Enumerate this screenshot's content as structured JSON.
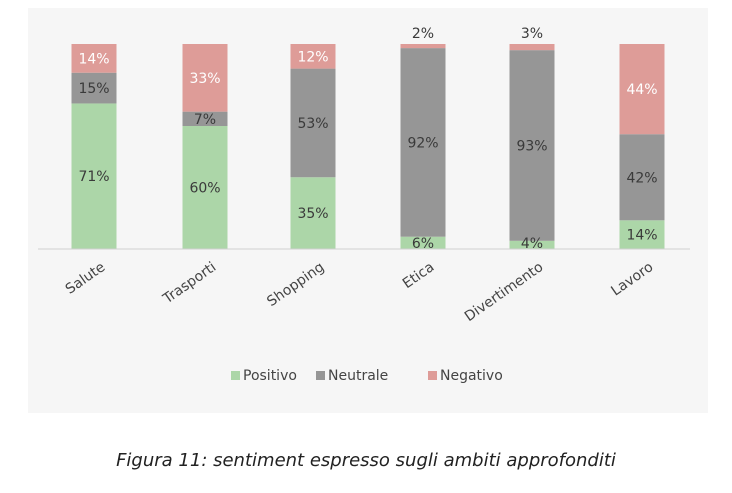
{
  "chart_data": {
    "type": "bar",
    "stacked": true,
    "categories": [
      "Salute",
      "Trasporti",
      "Shopping",
      "Etica",
      "Divertimento",
      "Lavoro"
    ],
    "series": [
      {
        "name": "Positivo",
        "color": "#acd6a8",
        "values": [
          71,
          60,
          35,
          6,
          4,
          14
        ],
        "labels": [
          "71%",
          "60%",
          "35%",
          "6%",
          "4%",
          "14%"
        ]
      },
      {
        "name": "Neutrale",
        "color": "#969696",
        "values": [
          15,
          7,
          53,
          92,
          93,
          42
        ],
        "labels": [
          "15%",
          "7%",
          "53%",
          "92%",
          "93%",
          "42%"
        ]
      },
      {
        "name": "Negativo",
        "color": "#de9c98",
        "values": [
          14,
          33,
          12,
          2,
          3,
          44
        ],
        "labels": [
          "14%",
          "33%",
          "12%",
          "2%",
          "3%",
          "44%"
        ]
      }
    ],
    "ylim": [
      0,
      100
    ],
    "grid": false,
    "legend": "bottom"
  },
  "caption": "Figura 11:  sentiment espresso sugli ambiti approfonditi"
}
